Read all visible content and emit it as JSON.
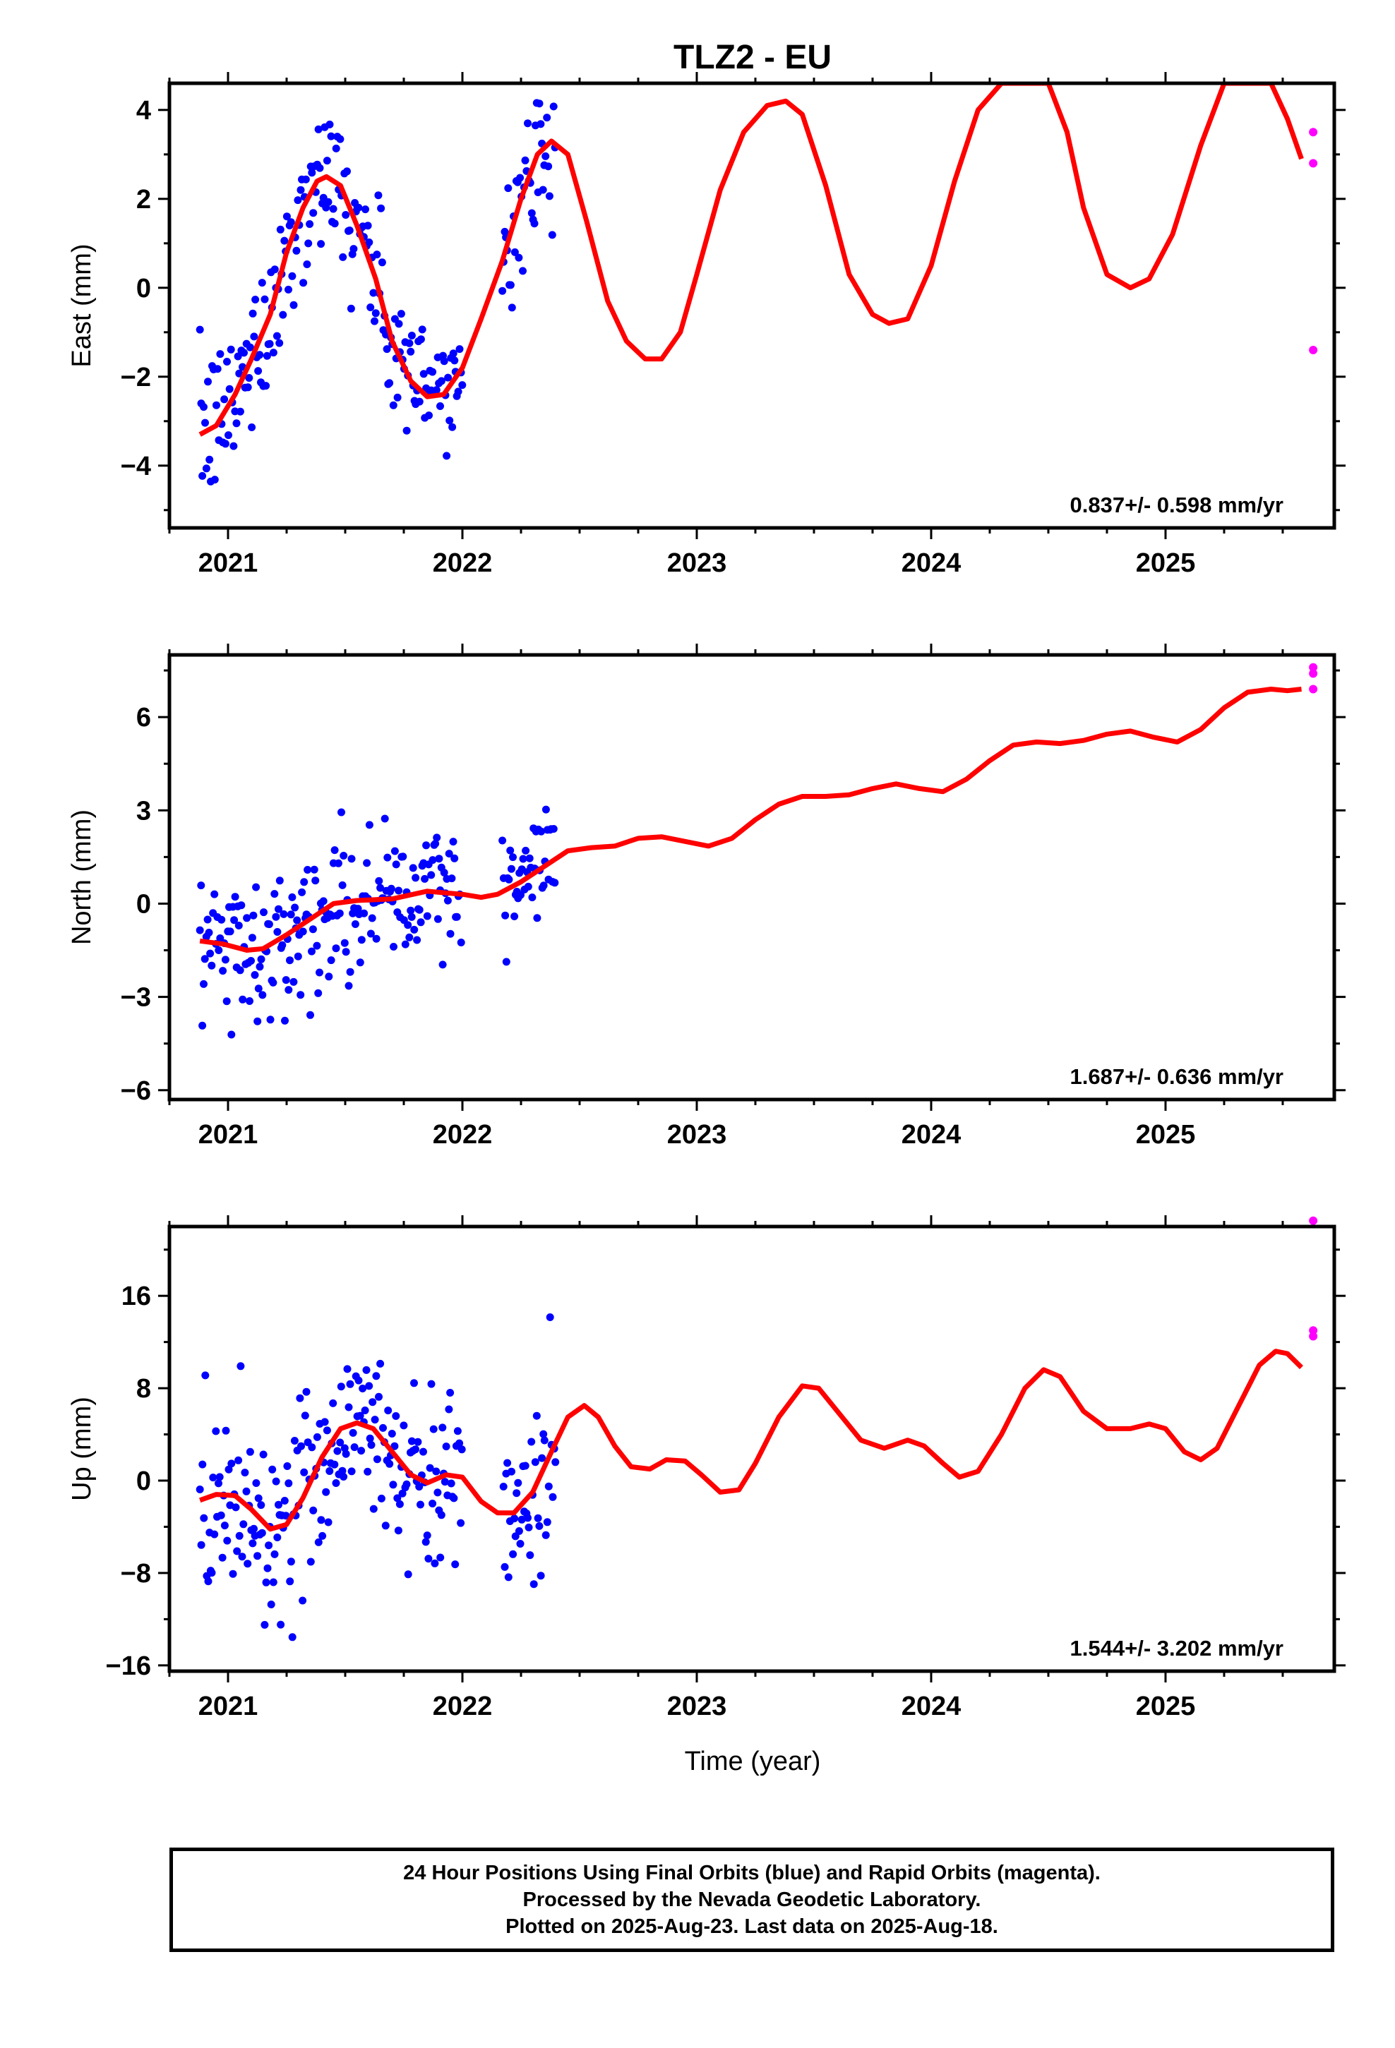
{
  "title": "TLZ2 - EU",
  "x_axis_label": "Time (year)",
  "footer": {
    "line1": "24 Hour Positions Using Final Orbits (blue) and Rapid Orbits (magenta).",
    "line2": "Processed by the Nevada Geodetic Laboratory.",
    "line3": "Plotted on 2025-Aug-23. Last data on 2025-Aug-18."
  },
  "colors": {
    "final_orbits": "#0000ff",
    "rapid_orbits": "#ff00ff",
    "model": "#ff0000",
    "axes": "#000000"
  },
  "chart_data": [
    {
      "type": "scatter",
      "ylabel": "East (mm)",
      "xlim": [
        2020.75,
        2025.72
      ],
      "ylim": [
        -5.4,
        4.6
      ],
      "xticks": [
        "2021",
        "2022",
        "2023",
        "2024",
        "2025"
      ],
      "yticks": [
        "4",
        "2",
        "0",
        "−2",
        "−4"
      ],
      "ytick_values": [
        4,
        2,
        0,
        -2,
        -4
      ],
      "rate_annotation": "0.837+/- 0.598 mm/yr",
      "model_curve": [
        [
          2020.88,
          -3.3
        ],
        [
          2020.95,
          -3.1
        ],
        [
          2021.03,
          -2.4
        ],
        [
          2021.1,
          -1.6
        ],
        [
          2021.18,
          -0.6
        ],
        [
          2021.25,
          0.8
        ],
        [
          2021.32,
          1.8
        ],
        [
          2021.38,
          2.4
        ],
        [
          2021.42,
          2.5
        ],
        [
          2021.48,
          2.3
        ],
        [
          2021.55,
          1.4
        ],
        [
          2021.63,
          0.2
        ],
        [
          2021.7,
          -1.2
        ],
        [
          2021.78,
          -2.1
        ],
        [
          2021.85,
          -2.45
        ],
        [
          2021.92,
          -2.4
        ],
        [
          2022.0,
          -1.8
        ],
        [
          2022.08,
          -0.7
        ],
        [
          2022.17,
          0.6
        ],
        [
          2022.25,
          2.0
        ],
        [
          2022.32,
          3.0
        ],
        [
          2022.38,
          3.3
        ],
        [
          2022.45,
          3.0
        ],
        [
          2022.53,
          1.5
        ],
        [
          2022.62,
          -0.3
        ],
        [
          2022.7,
          -1.2
        ],
        [
          2022.78,
          -1.6
        ],
        [
          2022.85,
          -1.6
        ],
        [
          2022.93,
          -1.0
        ],
        [
          2023.0,
          0.3
        ],
        [
          2023.1,
          2.2
        ],
        [
          2023.2,
          3.5
        ],
        [
          2023.3,
          4.1
        ],
        [
          2023.38,
          4.2
        ],
        [
          2023.45,
          3.9
        ],
        [
          2023.55,
          2.3
        ],
        [
          2023.65,
          0.3
        ],
        [
          2023.75,
          -0.6
        ],
        [
          2023.82,
          -0.8
        ],
        [
          2023.9,
          -0.7
        ],
        [
          2024.0,
          0.5
        ],
        [
          2024.1,
          2.4
        ],
        [
          2024.2,
          4.0
        ],
        [
          2024.3,
          4.6
        ],
        [
          2024.5,
          4.6
        ],
        [
          2024.58,
          3.5
        ],
        [
          2024.65,
          1.8
        ],
        [
          2024.75,
          0.3
        ],
        [
          2024.85,
          0.0
        ],
        [
          2024.93,
          0.2
        ],
        [
          2025.03,
          1.2
        ],
        [
          2025.15,
          3.2
        ],
        [
          2025.25,
          4.6
        ],
        [
          2025.45,
          4.6
        ],
        [
          2025.52,
          3.8
        ],
        [
          2025.58,
          2.9
        ]
      ],
      "rapid_points": [
        [
          2025.63,
          3.5
        ],
        [
          2025.63,
          2.8
        ],
        [
          2025.63,
          -1.4
        ]
      ]
    },
    {
      "type": "scatter",
      "ylabel": "North (mm)",
      "xlim": [
        2020.75,
        2025.72
      ],
      "ylim": [
        -6.3,
        8.0
      ],
      "xticks": [
        "2021",
        "2022",
        "2023",
        "2024",
        "2025"
      ],
      "yticks": [
        "6",
        "3",
        "0",
        "−3",
        "−6"
      ],
      "ytick_values": [
        6,
        3,
        0,
        -3,
        -6
      ],
      "rate_annotation": "1.687+/- 0.636 mm/yr",
      "model_curve": [
        [
          2020.88,
          -1.2
        ],
        [
          2020.98,
          -1.3
        ],
        [
          2021.08,
          -1.5
        ],
        [
          2021.15,
          -1.45
        ],
        [
          2021.25,
          -1.0
        ],
        [
          2021.35,
          -0.5
        ],
        [
          2021.45,
          0.0
        ],
        [
          2021.55,
          0.1
        ],
        [
          2021.7,
          0.15
        ],
        [
          2021.85,
          0.4
        ],
        [
          2021.92,
          0.35
        ],
        [
          2022.0,
          0.3
        ],
        [
          2022.08,
          0.2
        ],
        [
          2022.15,
          0.3
        ],
        [
          2022.25,
          0.7
        ],
        [
          2022.35,
          1.2
        ],
        [
          2022.45,
          1.7
        ],
        [
          2022.55,
          1.8
        ],
        [
          2022.65,
          1.85
        ],
        [
          2022.75,
          2.1
        ],
        [
          2022.85,
          2.15
        ],
        [
          2022.95,
          2.0
        ],
        [
          2023.05,
          1.85
        ],
        [
          2023.15,
          2.1
        ],
        [
          2023.25,
          2.7
        ],
        [
          2023.35,
          3.2
        ],
        [
          2023.45,
          3.45
        ],
        [
          2023.55,
          3.45
        ],
        [
          2023.65,
          3.5
        ],
        [
          2023.75,
          3.7
        ],
        [
          2023.85,
          3.85
        ],
        [
          2023.95,
          3.7
        ],
        [
          2024.05,
          3.6
        ],
        [
          2024.15,
          4.0
        ],
        [
          2024.25,
          4.6
        ],
        [
          2024.35,
          5.1
        ],
        [
          2024.45,
          5.2
        ],
        [
          2024.55,
          5.15
        ],
        [
          2024.65,
          5.25
        ],
        [
          2024.75,
          5.45
        ],
        [
          2024.85,
          5.55
        ],
        [
          2024.95,
          5.35
        ],
        [
          2025.05,
          5.2
        ],
        [
          2025.15,
          5.6
        ],
        [
          2025.25,
          6.3
        ],
        [
          2025.35,
          6.8
        ],
        [
          2025.45,
          6.9
        ],
        [
          2025.52,
          6.85
        ],
        [
          2025.58,
          6.9
        ]
      ],
      "rapid_points": [
        [
          2025.63,
          7.6
        ],
        [
          2025.63,
          7.4
        ],
        [
          2025.63,
          6.9
        ]
      ]
    },
    {
      "type": "scatter",
      "ylabel": "Up (mm)",
      "xlim": [
        2020.75,
        2025.72
      ],
      "ylim": [
        -16.5,
        22.0
      ],
      "xticks": [
        "2021",
        "2022",
        "2023",
        "2024",
        "2025"
      ],
      "yticks": [
        "16",
        "8",
        "0",
        "−8",
        "−16"
      ],
      "ytick_values": [
        16,
        8,
        0,
        -8,
        -16
      ],
      "rate_annotation": "1.544+/- 3.202 mm/yr",
      "model_curve": [
        [
          2020.88,
          -1.7
        ],
        [
          2020.95,
          -1.2
        ],
        [
          2021.03,
          -1.3
        ],
        [
          2021.1,
          -2.5
        ],
        [
          2021.18,
          -4.2
        ],
        [
          2021.25,
          -3.8
        ],
        [
          2021.32,
          -1.5
        ],
        [
          2021.4,
          2.0
        ],
        [
          2021.48,
          4.5
        ],
        [
          2021.55,
          5.0
        ],
        [
          2021.62,
          4.5
        ],
        [
          2021.7,
          2.5
        ],
        [
          2021.78,
          0.5
        ],
        [
          2021.85,
          -0.2
        ],
        [
          2021.93,
          0.5
        ],
        [
          2022.0,
          0.3
        ],
        [
          2022.08,
          -1.8
        ],
        [
          2022.15,
          -2.8
        ],
        [
          2022.22,
          -2.8
        ],
        [
          2022.3,
          -1.0
        ],
        [
          2022.38,
          2.5
        ],
        [
          2022.45,
          5.5
        ],
        [
          2022.52,
          6.5
        ],
        [
          2022.58,
          5.5
        ],
        [
          2022.65,
          3.0
        ],
        [
          2022.72,
          1.2
        ],
        [
          2022.8,
          1.0
        ],
        [
          2022.87,
          1.8
        ],
        [
          2022.95,
          1.7
        ],
        [
          2023.02,
          0.5
        ],
        [
          2023.1,
          -1.0
        ],
        [
          2023.18,
          -0.8
        ],
        [
          2023.25,
          1.5
        ],
        [
          2023.35,
          5.5
        ],
        [
          2023.45,
          8.2
        ],
        [
          2023.52,
          8.0
        ],
        [
          2023.6,
          6.0
        ],
        [
          2023.7,
          3.5
        ],
        [
          2023.8,
          2.8
        ],
        [
          2023.9,
          3.5
        ],
        [
          2023.97,
          3.0
        ],
        [
          2024.05,
          1.5
        ],
        [
          2024.12,
          0.3
        ],
        [
          2024.2,
          0.8
        ],
        [
          2024.3,
          4.0
        ],
        [
          2024.4,
          8.0
        ],
        [
          2024.48,
          9.6
        ],
        [
          2024.55,
          9.0
        ],
        [
          2024.65,
          6.0
        ],
        [
          2024.75,
          4.5
        ],
        [
          2024.85,
          4.5
        ],
        [
          2024.93,
          4.9
        ],
        [
          2025.0,
          4.5
        ],
        [
          2025.08,
          2.5
        ],
        [
          2025.15,
          1.8
        ],
        [
          2025.22,
          2.8
        ],
        [
          2025.3,
          6.0
        ],
        [
          2025.4,
          10.0
        ],
        [
          2025.47,
          11.2
        ],
        [
          2025.52,
          11.0
        ],
        [
          2025.58,
          9.8
        ]
      ],
      "rapid_points": [
        [
          2025.63,
          22.5
        ],
        [
          2025.63,
          13.0
        ],
        [
          2025.63,
          12.5
        ]
      ]
    }
  ]
}
